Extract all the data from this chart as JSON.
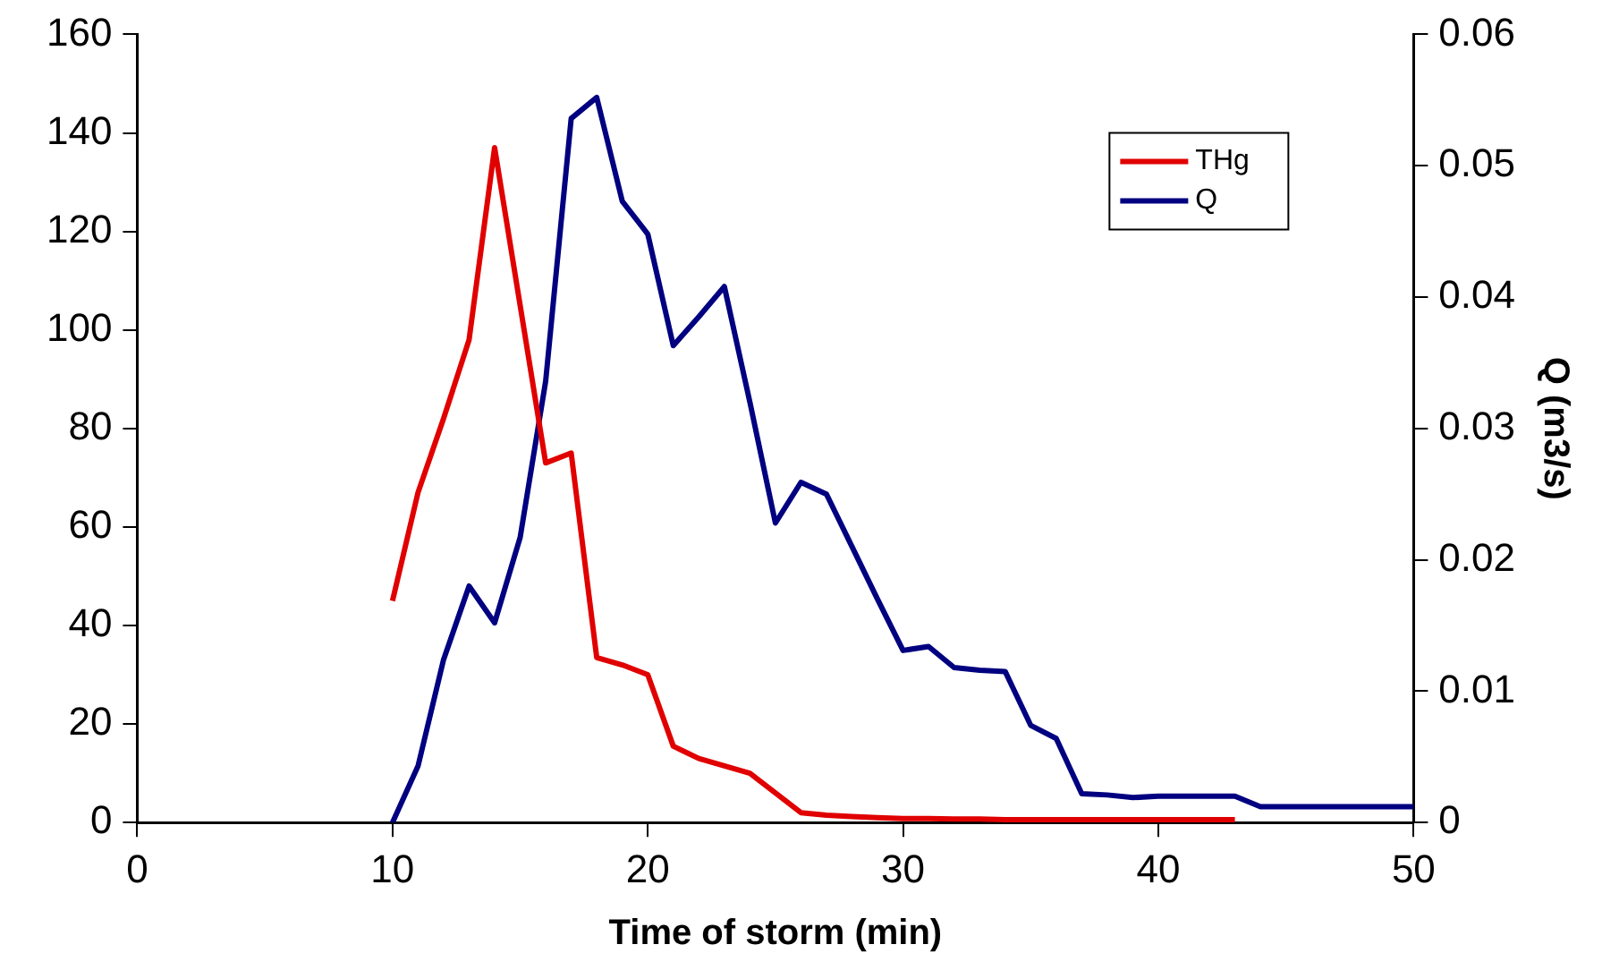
{
  "chart_data": {
    "type": "line",
    "xlabel": "Time of storm (min)",
    "y2label": "Q (m3/s)",
    "xlim": [
      0,
      50
    ],
    "xticks": [
      0,
      10,
      20,
      30,
      40,
      50
    ],
    "ylim": [
      0,
      160
    ],
    "yticks": [
      0,
      20,
      40,
      60,
      80,
      100,
      120,
      140,
      160
    ],
    "y2lim": [
      0,
      0.06
    ],
    "y2ticks": [
      0,
      0.01,
      0.02,
      0.03,
      0.04,
      0.05,
      0.06
    ],
    "grid": false,
    "legend": "top right",
    "marker": "none",
    "line_style": "solid",
    "series": [
      {
        "name": "THg",
        "color": "#e00000",
        "x": [
          10,
          11,
          12,
          13,
          14,
          15,
          16,
          17,
          18,
          19,
          20,
          21,
          22,
          23,
          24,
          25,
          26,
          27,
          28,
          29,
          30,
          31,
          32,
          33,
          34,
          35,
          36,
          37,
          38,
          39,
          40,
          41,
          42,
          43
        ],
        "values": [
          45,
          67,
          82,
          98,
          137,
          105,
          73,
          75,
          33.5,
          32,
          30,
          15.5,
          13,
          11.5,
          10,
          6,
          2,
          1.5,
          1.2,
          1,
          0.8,
          0.8,
          0.7,
          0.7,
          0.6,
          0.6,
          0.6,
          0.6,
          0.6,
          0.6,
          0.6,
          0.6,
          0.6,
          0.6
        ]
      },
      {
        "name": "Q",
        "color": "#000080",
        "axis": "y2",
        "x": [
          10,
          11,
          12,
          13,
          14,
          15,
          16,
          17,
          18,
          19,
          20,
          21,
          22,
          23,
          24,
          25,
          26,
          27,
          28,
          29,
          30,
          31,
          32,
          33,
          34,
          35,
          36,
          37,
          38,
          39,
          40,
          41,
          42,
          43,
          44,
          45,
          46,
          47,
          48,
          49,
          50
        ],
        "values": [
          0,
          0.0043,
          0.0124,
          0.018,
          0.0152,
          0.0217,
          0.0336,
          0.0536,
          0.0552,
          0.0473,
          0.0448,
          0.0363,
          0.0385,
          0.0408,
          0.032,
          0.0228,
          0.0259,
          0.025,
          0.021,
          0.017,
          0.0131,
          0.0134,
          0.0118,
          0.0116,
          0.0115,
          0.0074,
          0.0064,
          0.0022,
          0.0021,
          0.0019,
          0.002,
          0.002,
          0.002,
          0.002,
          0.0012,
          0.0012,
          0.0012,
          0.0012,
          0.0012,
          0.0012,
          0.0012
        ]
      }
    ]
  }
}
